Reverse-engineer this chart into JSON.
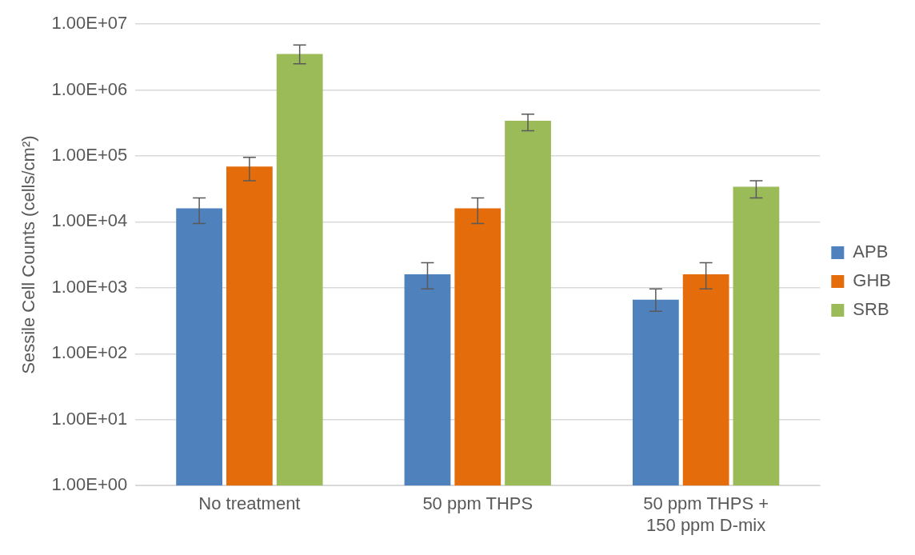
{
  "chart_data": {
    "type": "bar",
    "ylabel": "Sessile Cell Counts (cells/cm²)",
    "categories": [
      "No treatment",
      "50 ppm THPS",
      "50 ppm THPS +\n150 ppm D-mix"
    ],
    "series": [
      {
        "name": "APB",
        "color": "#4f81bd",
        "values": [
          16000,
          1600,
          660
        ],
        "errors": [
          [
            9400,
            23000
          ],
          [
            960,
            2400
          ],
          [
            440,
            960
          ]
        ]
      },
      {
        "name": "GHB",
        "color": "#e46c0a",
        "values": [
          69000,
          16000,
          1600
        ],
        "errors": [
          [
            42000,
            95000
          ],
          [
            9400,
            23000
          ],
          [
            960,
            2400
          ]
        ]
      },
      {
        "name": "SRB",
        "color": "#9bbb59",
        "values": [
          3500000,
          340000,
          34000
        ],
        "errors": [
          [
            2500000,
            4800000
          ],
          [
            240000,
            430000
          ],
          [
            23000,
            42000
          ]
        ]
      }
    ],
    "log": true,
    "ylim": [
      1,
      10000000
    ],
    "yticks": [
      {
        "value": 1,
        "label": "1.00E+00"
      },
      {
        "value": 10,
        "label": "1.00E+01"
      },
      {
        "value": 100,
        "label": "1.00E+02"
      },
      {
        "value": 1000,
        "label": "1.00E+03"
      },
      {
        "value": 10000,
        "label": "1.00E+04"
      },
      {
        "value": 100000,
        "label": "1.00E+05"
      },
      {
        "value": 1000000,
        "label": "1.00E+06"
      },
      {
        "value": 10000000,
        "label": "1.00E+07"
      }
    ],
    "grid": "y",
    "legend": "right"
  }
}
